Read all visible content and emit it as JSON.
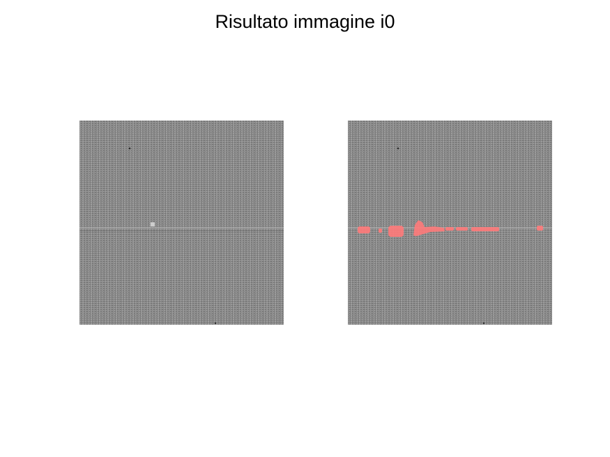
{
  "figure": {
    "title": "Risultato immagine i0"
  },
  "panels": [
    {
      "role": "original-image",
      "content": "grayscale woven fabric texture with a horizontal defect line"
    },
    {
      "role": "result-image",
      "content": "same fabric texture with detected defect regions highlighted in red"
    }
  ],
  "colors": {
    "background": "#ffffff",
    "fabric_base": "#8a8a8a",
    "defect_highlight": "#ff7b7b"
  }
}
